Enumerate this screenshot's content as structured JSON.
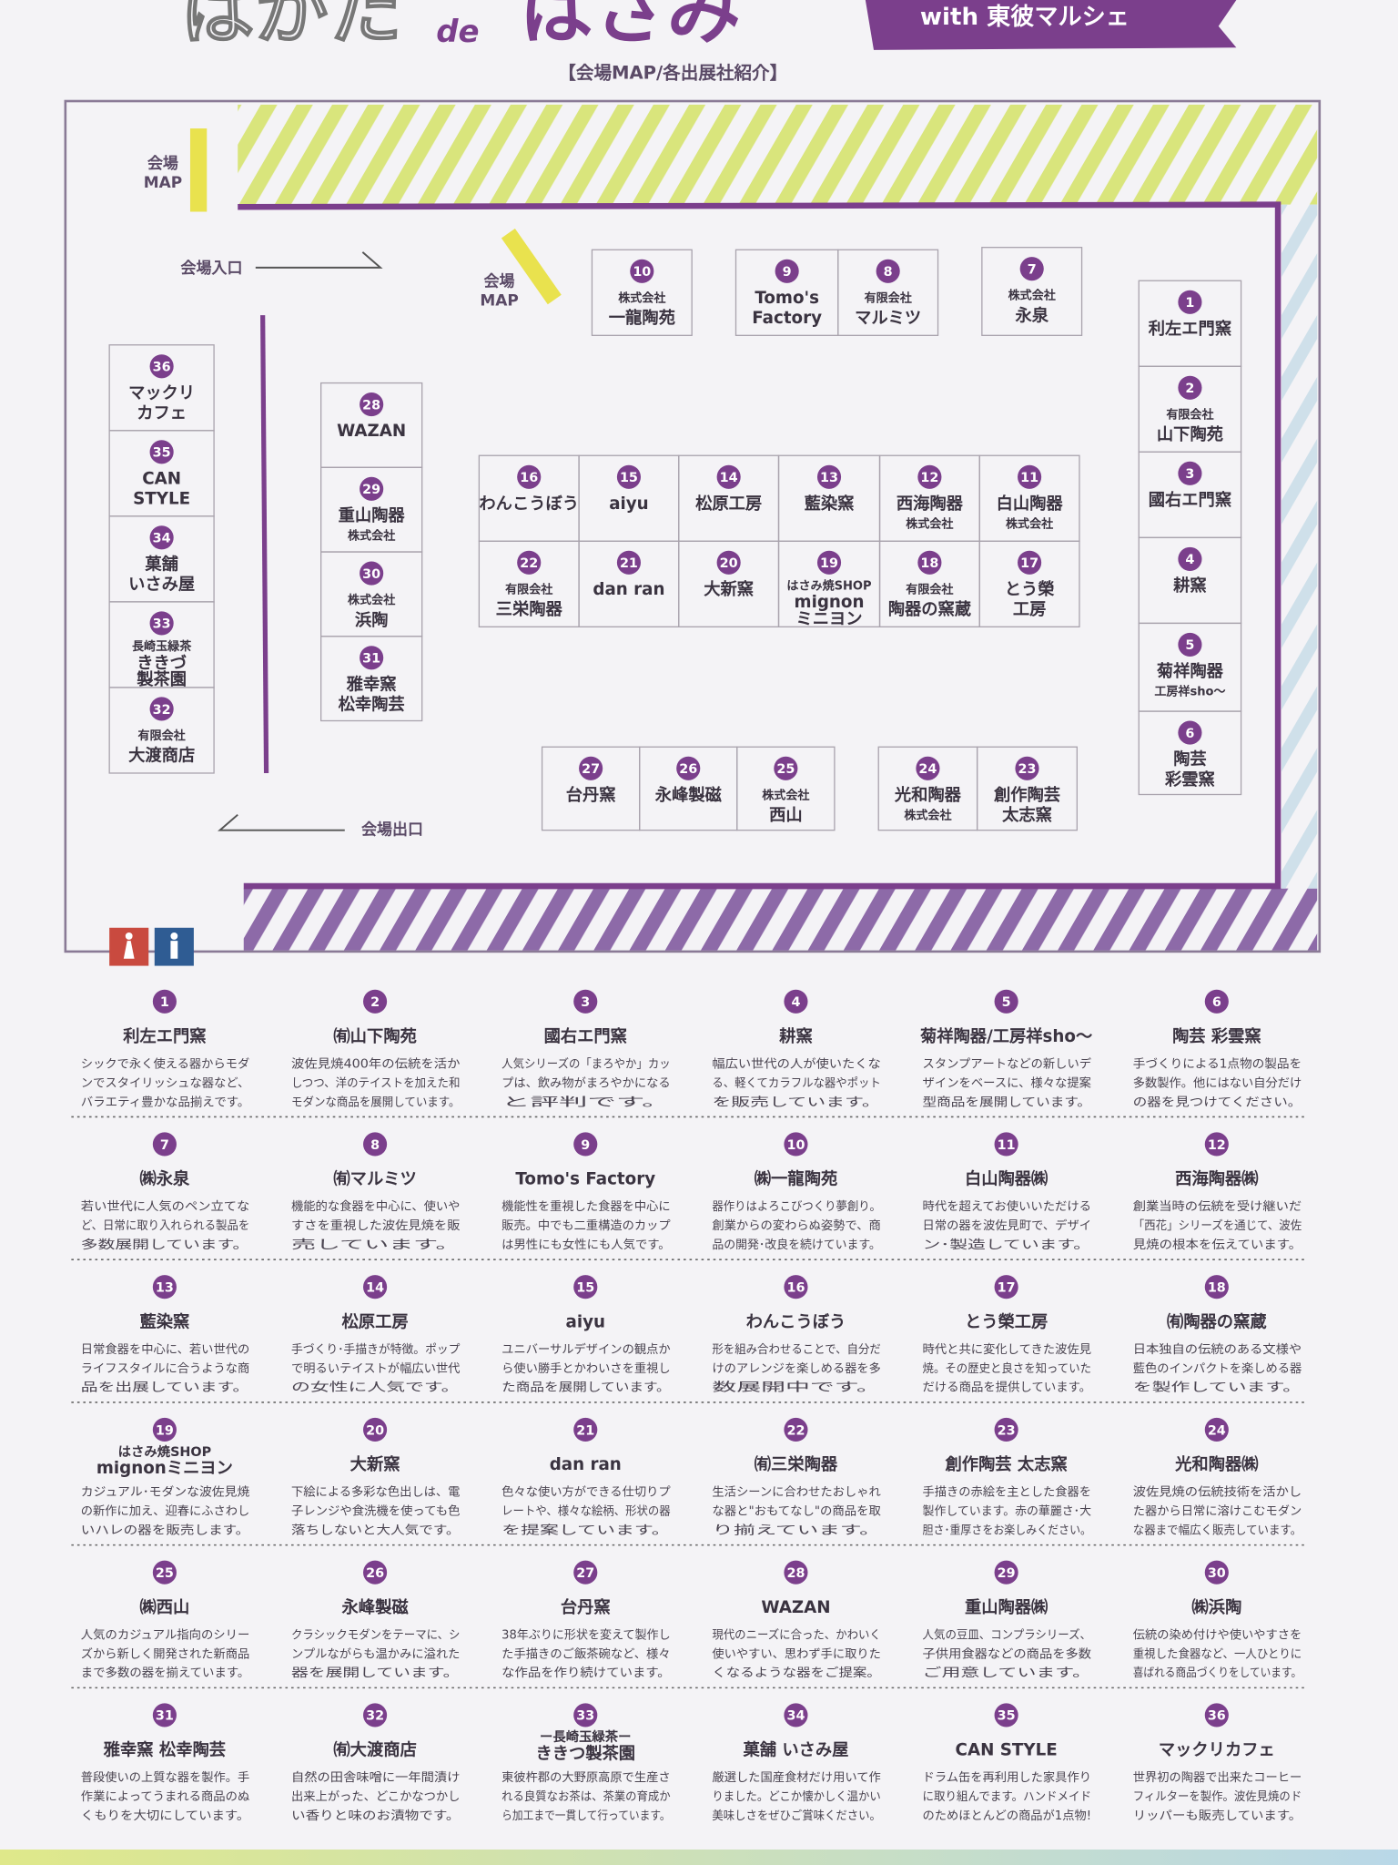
{
  "header": {
    "title_left": "はかた",
    "title_mid": "de",
    "title_right": "はさみ",
    "ribbon": "with 東彼マルシェ",
    "subtitle": "【会場MAP/各出展社紹介】"
  },
  "map": {
    "map_label_1": [
      "会場",
      "MAP"
    ],
    "map_label_2": [
      "会場",
      "MAP"
    ],
    "entrance": "会場入口",
    "exit": "会場出口",
    "booths": [
      {
        "number": 1,
        "lines": [
          "利左エ門窯"
        ]
      },
      {
        "number": 2,
        "lines": [
          "有限会社",
          "山下陶苑"
        ]
      },
      {
        "number": 3,
        "lines": [
          "國右エ門窯"
        ]
      },
      {
        "number": 4,
        "lines": [
          "耕窯"
        ]
      },
      {
        "number": 5,
        "lines": [
          "菊祥陶器",
          "工房祥sho～"
        ]
      },
      {
        "number": 6,
        "lines": [
          "陶芸",
          "彩雲窯"
        ]
      },
      {
        "number": 7,
        "lines": [
          "株式会社",
          "永泉"
        ]
      },
      {
        "number": 8,
        "lines": [
          "有限会社",
          "マルミツ"
        ]
      },
      {
        "number": 9,
        "lines": [
          "Tomo's",
          "Factory"
        ]
      },
      {
        "number": 10,
        "lines": [
          "株式会社",
          "一龍陶苑"
        ]
      },
      {
        "number": 11,
        "lines": [
          "白山陶器",
          "株式会社"
        ]
      },
      {
        "number": 12,
        "lines": [
          "西海陶器",
          "株式会社"
        ]
      },
      {
        "number": 13,
        "lines": [
          "藍染窯"
        ]
      },
      {
        "number": 14,
        "lines": [
          "松原工房"
        ]
      },
      {
        "number": 15,
        "lines": [
          "aiyu"
        ]
      },
      {
        "number": 16,
        "lines": [
          "わんこうぼう"
        ]
      },
      {
        "number": 17,
        "lines": [
          "とう榮",
          "工房"
        ]
      },
      {
        "number": 18,
        "lines": [
          "有限会社",
          "陶器の窯蔵"
        ]
      },
      {
        "number": 19,
        "lines": [
          "はさみ焼SHOP",
          "mignon",
          "ミニヨン"
        ]
      },
      {
        "number": 20,
        "lines": [
          "大新窯"
        ]
      },
      {
        "number": 21,
        "lines": [
          "dan ran"
        ]
      },
      {
        "number": 22,
        "lines": [
          "有限会社",
          "三栄陶器"
        ]
      },
      {
        "number": 23,
        "lines": [
          "創作陶芸",
          "太志窯"
        ]
      },
      {
        "number": 24,
        "lines": [
          "光和陶器",
          "株式会社"
        ]
      },
      {
        "number": 25,
        "lines": [
          "株式会社",
          "西山"
        ]
      },
      {
        "number": 26,
        "lines": [
          "永峰製磁"
        ]
      },
      {
        "number": 27,
        "lines": [
          "台丹窯"
        ]
      },
      {
        "number": 28,
        "lines": [
          "WAZAN"
        ]
      },
      {
        "number": 29,
        "lines": [
          "重山陶器",
          "株式会社"
        ]
      },
      {
        "number": 30,
        "lines": [
          "株式会社",
          "浜陶"
        ]
      },
      {
        "number": 31,
        "lines": [
          "雅幸窯",
          "松幸陶芸"
        ]
      },
      {
        "number": 32,
        "lines": [
          "有限会社",
          "大渡商店"
        ]
      },
      {
        "number": 33,
        "lines": [
          "長崎玉緑茶",
          "ききづ",
          "製茶園"
        ]
      },
      {
        "number": 34,
        "lines": [
          "菓舗",
          "いさみ屋"
        ]
      },
      {
        "number": 35,
        "lines": [
          "CAN",
          "STYLE"
        ]
      },
      {
        "number": 36,
        "lines": [
          "マックリ",
          "カフェ"
        ]
      }
    ]
  },
  "exhibitors": [
    {
      "number": 1,
      "name": "利左エ門窯",
      "desc": [
        "シックで永く使える器からモダ",
        "ンでスタイリッシュな器など、",
        "バラエティ豊かな品揃えです。"
      ]
    },
    {
      "number": 2,
      "name": "㈲山下陶苑",
      "desc": [
        "波佐見焼400年の伝統を活か",
        "しつつ、洋のテイストを加えた和",
        "モダンな商品を展開しています。"
      ]
    },
    {
      "number": 3,
      "name": "國右エ門窯",
      "desc": [
        "人気シリーズの「まろやか」カッ",
        "プは、飲み物がまろやかになる",
        "と評判です。"
      ]
    },
    {
      "number": 4,
      "name": "耕窯",
      "desc": [
        "幅広い世代の人が使いたくな",
        "る、軽くてカラフルな器やポット",
        "を販売しています。"
      ]
    },
    {
      "number": 5,
      "name": "菊祥陶器/工房祥sho～",
      "desc": [
        "スタンプアートなどの新しいデ",
        "ザインをベースに、様々な提案",
        "型商品を展開しています。"
      ]
    },
    {
      "number": 6,
      "name": "陶芸 彩雲窯",
      "desc": [
        "手づくりによる1点物の製品を",
        "多数製作。他にはない自分だけ",
        "の器を見つけてください。"
      ]
    },
    {
      "number": 7,
      "name": "㈱永泉",
      "desc": [
        "若い世代に人気のペン立てな",
        "ど、日常に取り入れられる製品を",
        "多数展開しています。"
      ]
    },
    {
      "number": 8,
      "name": "㈲マルミツ",
      "desc": [
        "機能的な食器を中心に、使いや",
        "すさを重視した波佐見焼を販",
        "売しています。"
      ]
    },
    {
      "number": 9,
      "name": "Tomo's Factory",
      "desc": [
        "機能性を重視した食器を中心に",
        "販売。中でも二重構造のカップ",
        "は男性にも女性にも人気です。"
      ]
    },
    {
      "number": 10,
      "name": "㈱一龍陶苑",
      "desc": [
        "器作りはよろこびつくり夢創り。",
        "創業からの変わらぬ姿勢で、商",
        "品の開発･改良を続けています。"
      ]
    },
    {
      "number": 11,
      "name": "白山陶器㈱",
      "desc": [
        "時代を超えてお使いいただける",
        "日常の器を波佐見町で、デザイ",
        "ン･製造しています。"
      ]
    },
    {
      "number": 12,
      "name": "西海陶器㈱",
      "desc": [
        "創業当時の伝統を受け継いだ",
        "「西花」シリーズを通じて、波佐",
        "見焼の根本を伝えています。"
      ]
    },
    {
      "number": 13,
      "name": "藍染窯",
      "desc": [
        "日常食器を中心に、若い世代の",
        "ライフスタイルに合うような商",
        "品を出展しています。"
      ]
    },
    {
      "number": 14,
      "name": "松原工房",
      "desc": [
        "手づくり･手描きが特徴。ポップ",
        "で明るいテイストが幅広い世代",
        "の女性に人気です。"
      ]
    },
    {
      "number": 15,
      "name": "aiyu",
      "desc": [
        "ユニバーサルデザインの観点か",
        "ら使い勝手とかわいさを重視し",
        "た商品を展開しています。"
      ]
    },
    {
      "number": 16,
      "name": "わんこうぼう",
      "desc": [
        "形を組み合わせることで、自分だ",
        "けのアレンジを楽しめる器を多",
        "数展開中です。"
      ]
    },
    {
      "number": 17,
      "name": "とう榮工房",
      "desc": [
        "時代と共に変化してきた波佐見",
        "焼。その歴史と良さを知っていた",
        "だける商品を提供しています。"
      ]
    },
    {
      "number": 18,
      "name": "㈲陶器の窯蔵",
      "desc": [
        "日本独自の伝統のある文様や",
        "藍色のインパクトを楽しめる器",
        "を製作しています。"
      ]
    },
    {
      "number": 19,
      "prefix": "はさみ焼SHOP",
      "name": "mignonミニヨン",
      "desc": [
        "カジュアル･モダンな波佐見焼",
        "の新作に加え、迎春にふさわし",
        "いハレの器を販売します。"
      ]
    },
    {
      "number": 20,
      "name": "大新窯",
      "desc": [
        "下絵による多彩な色出しは、電",
        "子レンジや食洗機を使っても色",
        "落ちしないと大人気です。"
      ]
    },
    {
      "number": 21,
      "name": "dan ran",
      "desc": [
        "色々な使い方ができる仕切りプ",
        "レートや、様々な絵柄、形状の器",
        "を提案しています。"
      ]
    },
    {
      "number": 22,
      "name": "㈲三栄陶器",
      "desc": [
        "生活シーンに合わせたおしゃれ",
        "な器と\"おもてなし\"の商品を取",
        "り揃えています。"
      ]
    },
    {
      "number": 23,
      "name": "創作陶芸 太志窯",
      "desc": [
        "手描きの赤絵を主とした食器を",
        "製作しています。赤の華麗さ･大",
        "胆さ･重厚さをお楽しみください。"
      ]
    },
    {
      "number": 24,
      "name": "光和陶器㈱",
      "desc": [
        "波佐見焼の伝統技術を活かし",
        "た器から日常に溶けこむモダン",
        "な器まで幅広く販売しています。"
      ]
    },
    {
      "number": 25,
      "name": "㈱西山",
      "desc": [
        "人気のカジュアル指向のシリー",
        "ズから新しく開発された新商品",
        "まで多数の器を揃えています。"
      ]
    },
    {
      "number": 26,
      "name": "永峰製磁",
      "desc": [
        "クラシックモダンをテーマに、シ",
        "ンプルながらも温かみに溢れた",
        "器を展開しています。"
      ]
    },
    {
      "number": 27,
      "name": "台丹窯",
      "desc": [
        "38年ぶりに形状を変えて製作し",
        "た手描きのご飯茶碗など、様々",
        "な作品を作り続けています。"
      ]
    },
    {
      "number": 28,
      "name": "WAZAN",
      "desc": [
        "現代のニーズに合った、かわいく",
        "使いやすい、思わず手に取りた",
        "くなるような器をご提案。"
      ]
    },
    {
      "number": 29,
      "name": "重山陶器㈱",
      "desc": [
        "人気の豆皿、コンプラシリーズ、",
        "子供用食器などの商品を多数",
        "ご用意しています。"
      ]
    },
    {
      "number": 30,
      "name": "㈱浜陶",
      "desc": [
        "伝統の染め付けや使いやすさを",
        "重視した食器など、一人ひとりに",
        "喜ばれる商品づくりをしています。"
      ]
    },
    {
      "number": 31,
      "name": "雅幸窯 松幸陶芸",
      "desc": [
        "普段使いの上質な器を製作。手",
        "作業によってうまれる商品のぬ",
        "くもりを大切にしています。"
      ]
    },
    {
      "number": 32,
      "name": "㈲大渡商店",
      "desc": [
        "自然の田舎味噌に一年間漬け",
        "出来上がった、どこかなつかし",
        "い香りと味のお漬物です。"
      ]
    },
    {
      "number": 33,
      "prefix": "ー長崎玉緑茶ー",
      "name": "ききつ製茶園",
      "desc": [
        "東彼杵郡の大野原高原で生産さ",
        "れる良質なお茶は、茶業の育成か",
        "ら加工まで一貫して行っています。"
      ]
    },
    {
      "number": 34,
      "name": "菓舗 いさみ屋",
      "desc": [
        "厳選した国産食材だけ用いて作",
        "りました。どこか懐かしく温かい",
        "美味しさをぜひご賞味ください。"
      ]
    },
    {
      "number": 35,
      "name": "CAN STYLE",
      "desc": [
        "ドラム缶を再利用した家具作り",
        "に取り組んでます。ハンドメイド",
        "のためほとんどの商品が1点物!"
      ]
    },
    {
      "number": 36,
      "name": "マックリカフェ",
      "desc": [
        "世界初の陶器で出来たコーヒー",
        "フィルターを製作。波佐見焼のド",
        "リッパーも販売しています。"
      ]
    }
  ]
}
